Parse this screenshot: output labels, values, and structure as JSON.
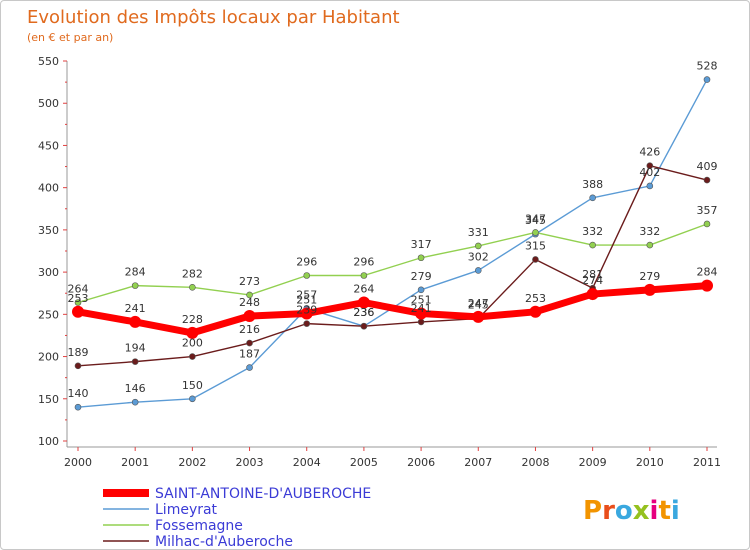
{
  "title": "Evolution des Impôts locaux par Habitant",
  "subtitle": "(en € et par an)",
  "logo": {
    "text": "Proxiti",
    "letters": [
      "P",
      "r",
      "o",
      "x",
      "i",
      "t",
      "i"
    ],
    "colors": [
      "#f29400",
      "#e94e1b",
      "#3aa8df",
      "#95c11f",
      "#e6007e",
      "#f29400",
      "#3aa8df"
    ]
  },
  "chart_data": {
    "type": "line",
    "title": "Evolution des Impôts locaux par Habitant",
    "subtitle": "(en € et par an)",
    "xlabel": "",
    "ylabel": "",
    "categories": [
      "2000",
      "2001",
      "2002",
      "2003",
      "2004",
      "2005",
      "2006",
      "2007",
      "2008",
      "2009",
      "2010",
      "2011"
    ],
    "ylim": [
      100,
      550
    ],
    "yticks": [
      100,
      150,
      200,
      250,
      300,
      350,
      400,
      450,
      500,
      550
    ],
    "ytick_labels": [
      "100",
      "150",
      "200",
      "250",
      "300",
      "350",
      "400",
      "450",
      "500",
      "550"
    ],
    "grid": false,
    "legend_position": "bottom-left",
    "series": [
      {
        "name": "Limeyrat",
        "color": "#5b9bd5",
        "values": [
          140,
          146,
          150,
          187,
          257,
          236,
          279,
          302,
          345,
          388,
          402,
          528
        ]
      },
      {
        "name": "Fossemagne",
        "color": "#92d050",
        "values": [
          264,
          284,
          282,
          273,
          296,
          296,
          317,
          331,
          347,
          332,
          332,
          357
        ]
      },
      {
        "name": "Milhac-d'Auberoche",
        "color": "#6b1c1c",
        "values": [
          189,
          194,
          200,
          216,
          239,
          236,
          241,
          245,
          315,
          281,
          426,
          409
        ]
      },
      {
        "name": "SAINT-ANTOINE-D'AUBEROCHE",
        "color": "#ff0000",
        "values": [
          253,
          241,
          228,
          248,
          251,
          264,
          251,
          247,
          253,
          274,
          279,
          284
        ]
      }
    ],
    "legend_order": [
      "SAINT-ANTOINE-D'AUBEROCHE",
      "Limeyrat",
      "Fossemagne",
      "Milhac-d'Auberoche"
    ]
  }
}
